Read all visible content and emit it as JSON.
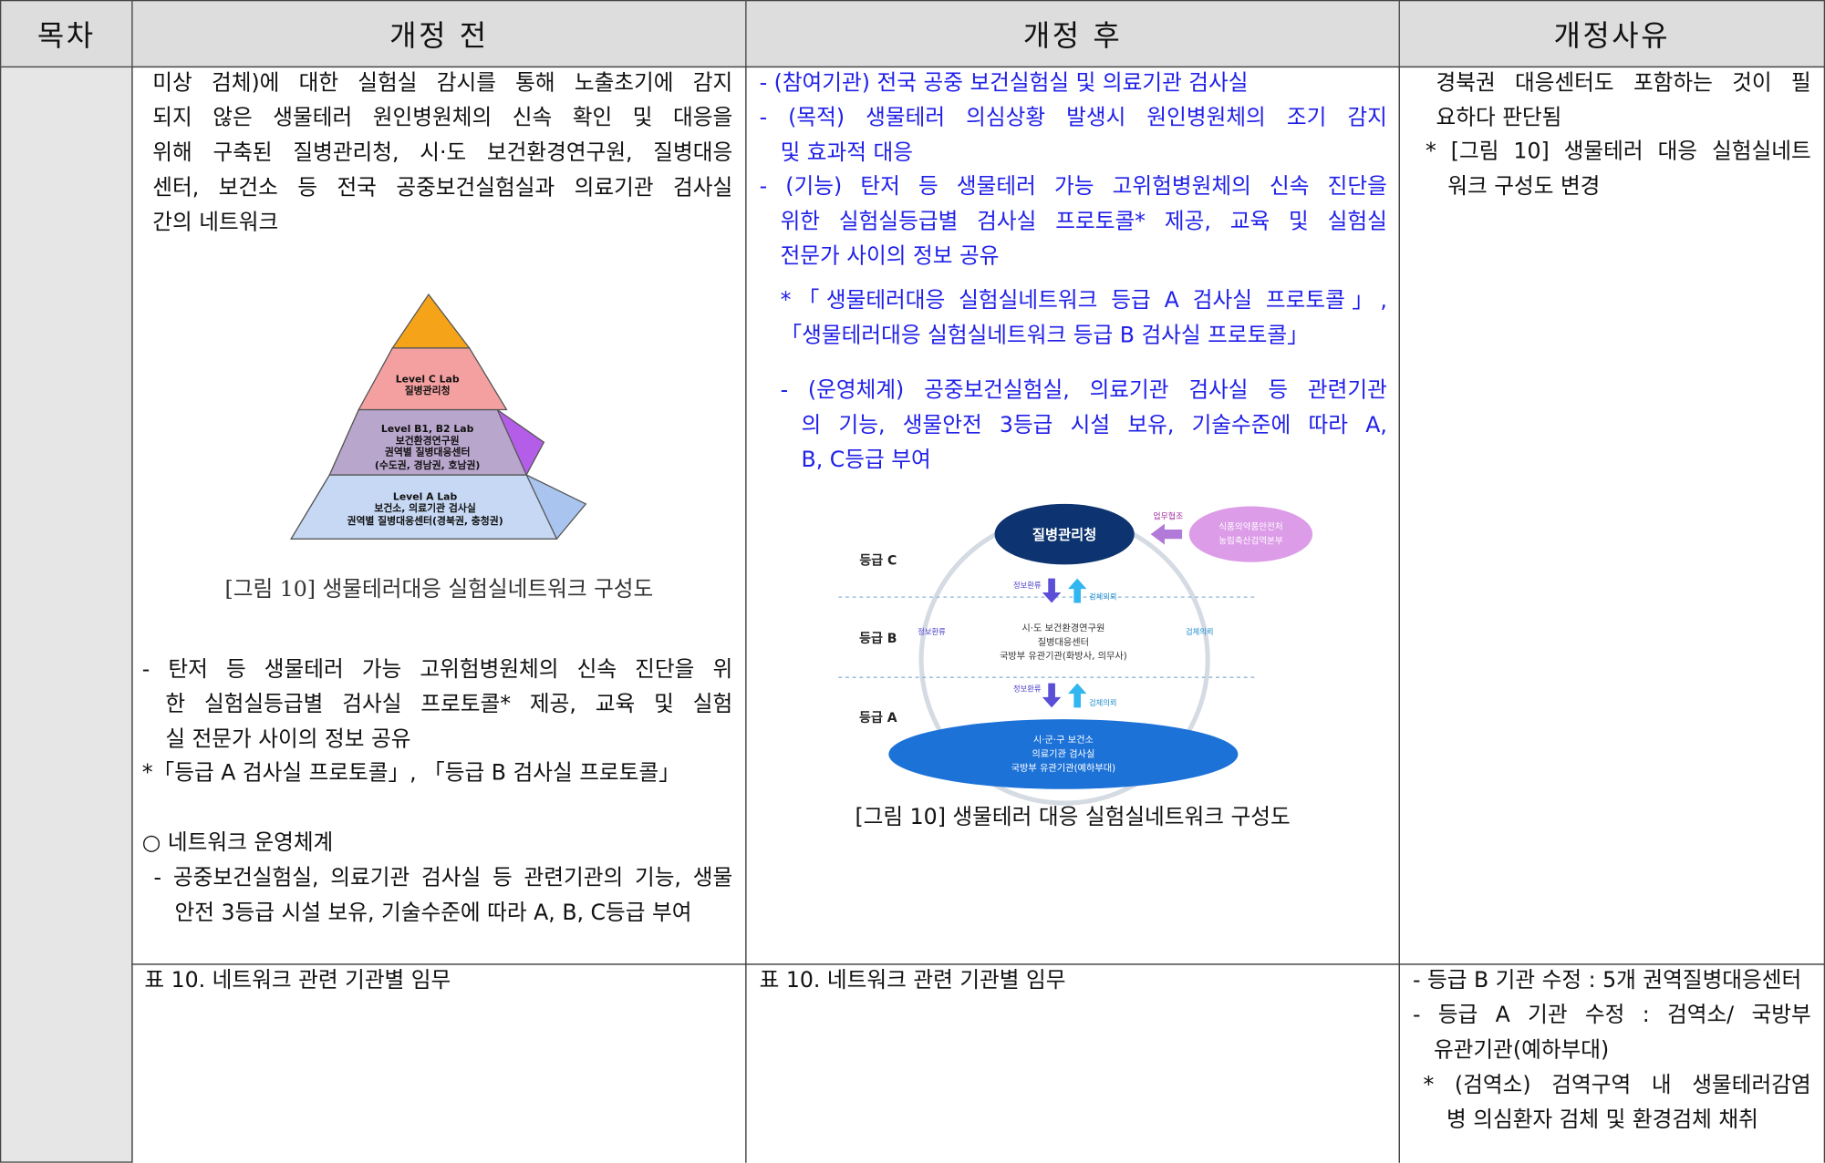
{
  "header": [
    "목차",
    "개정 전",
    "개정 후",
    "개정사유"
  ],
  "row1": {
    "before": {
      "p1": {
        "lines": [
          "미상 검체)에 대한 실험실 감시를 통해 노출초기에 감지",
          "되지 않은 생물테러 원인병원체의 신속 확인 및 대응을",
          "위해 구축된 질병관리청, 시·도 보건환경연구원, 질병대응",
          "센터, 보건소 등 전국 공중보건실험실과 의료기관 검사실",
          "간의 네트워크"
        ]
      },
      "pyramid": {
        "c": [
          "Level C Lab",
          "질병관리청"
        ],
        "b": [
          "Level B1, B2 Lab",
          "보건환경연구원",
          "권역별 질병대응센터",
          "(수도권, 경남권, 호남권)"
        ],
        "a": [
          "Level A Lab",
          "보건소, 의료기관 검사실",
          "권역별 질병대응센터(경북권, 충청권)"
        ]
      },
      "caption": "[그림 10] 생물테러대응 실험실네트워크 구성도",
      "p2": {
        "lines": [
          "- 탄저 등 생물테러 가능 고위험병원체의 신속 진단을 위",
          "한 실험실등급별 검사실 프로토콜* 제공, 교육 및 실험",
          "실 전문가 사이의 정보 공유"
        ]
      },
      "p3": {
        "lines": [
          "*「등급 A 검사실 프로토콜」, 「등급 B 검사실 프로토콜」"
        ]
      },
      "p4": {
        "lines": [
          "○ 네트워크 운영체계"
        ]
      },
      "p5": {
        "lines": [
          "- 공중보건실험실, 의료기관 검사실 등 관련기관의 기능, 생물",
          "안전 3등급 시설 보유, 기술수준에 따라 A, B, C등급 부여"
        ]
      }
    },
    "after": {
      "p1": {
        "lines": [
          "- (참여기관) 전국 공중 보건실험실 및 의료기관 검사실"
        ]
      },
      "p2": {
        "lines": [
          "- (목적) 생물테러 의심상황 발생시 원인병원체의 조기 감지",
          "및 효과적 대응"
        ]
      },
      "p3": {
        "lines": [
          "- (기능) 탄저 등 생물테러 가능 고위험병원체의 신속 진단을",
          "위한 실험실등급별 검사실 프로토콜* 제공, 교육 및 실험실",
          "전문가 사이의 정보 공유"
        ]
      },
      "p4": {
        "lines": [
          "*「생물테러대응 실험실네트워크 등급 A 검사실 프로토콜」,",
          "「생물테러대응 실험실네트워크 등급 B 검사실 프로토콜」"
        ]
      },
      "p5": {
        "lines": [
          "- (운영체계) 공중보건실험실, 의료기관 검사실 등 관련기관",
          "의 기능, 생물안전 3등급 시설 보유, 기술수준에 따라 A,",
          "B, C등급 부여"
        ]
      },
      "diagram": {
        "top": "질병관리청",
        "coop": "업무협조",
        "partner": [
          "식품의약품안전처",
          "농림축산검역본부"
        ],
        "grades": [
          "등급 C",
          "등급 B",
          "등급 A"
        ],
        "middle": [
          "시·도 보건환경연구원",
          "질병대응센터",
          "국방부 유관기관(화방사, 의무사)"
        ],
        "bottom": [
          "시·군·구 보건소",
          "의료기관 검사실",
          "국방부 유관기관(예하부대)"
        ],
        "feedback": [
          "정보환류",
          "정보환류",
          "정보환류"
        ],
        "request": [
          "검체의뢰",
          "검체의뢰",
          "검체의뢰"
        ]
      },
      "caption": "[그림 10] 생물테러 대응 실험실네트워크 구성도"
    },
    "reason": {
      "p1": {
        "lines": [
          "경북권 대응센터도 포함하는 것이 필",
          "요하다 판단됨"
        ]
      },
      "p2": {
        "lines": [
          "* [그림 10] 생물테러 대응 실험실네트",
          "워크 구성도 변경"
        ]
      }
    }
  },
  "row2": {
    "before": "표 10. 네트워크 관련 기관별 임무",
    "after": "표 10. 네트워크 관련 기관별 임무",
    "reason": {
      "p1": {
        "lines": [
          "- 등급 B 기관 수정 : 5개 권역질병대응센터"
        ]
      },
      "p2": {
        "lines": [
          "- 등급 A 기관 수정 : 검역소/ 국방부",
          "유관기관(예하부대)"
        ]
      },
      "p3": {
        "lines": [
          "* (검역소) 검역구역 내 생물테러감염",
          "병 의심환자 검체 및 환경검체 채취"
        ]
      }
    }
  }
}
